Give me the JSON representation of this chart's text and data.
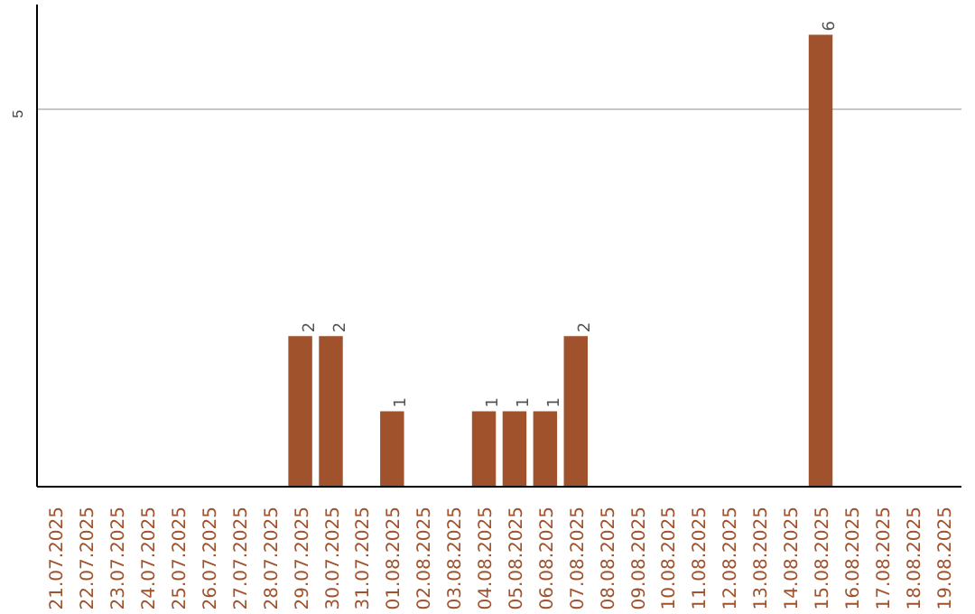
{
  "chart_data": {
    "type": "bar",
    "categories": [
      "21.07.2025",
      "22.07.2025",
      "23.07.2025",
      "24.07.2025",
      "25.07.2025",
      "26.07.2025",
      "27.07.2025",
      "28.07.2025",
      "29.07.2025",
      "30.07.2025",
      "31.07.2025",
      "01.08.2025",
      "02.08.2025",
      "03.08.2025",
      "04.08.2025",
      "05.08.2025",
      "06.08.2025",
      "07.08.2025",
      "08.08.2025",
      "09.08.2025",
      "10.08.2025",
      "11.08.2025",
      "12.08.2025",
      "13.08.2025",
      "14.08.2025",
      "15.08.2025",
      "16.08.2025",
      "17.08.2025",
      "18.08.2025",
      "19.08.2025"
    ],
    "values": [
      0,
      0,
      0,
      0,
      0,
      0,
      0,
      0,
      2,
      2,
      0,
      1,
      0,
      0,
      1,
      1,
      1,
      2,
      0,
      0,
      0,
      0,
      0,
      0,
      0,
      6,
      0,
      0,
      0,
      0
    ],
    "value_labels": [
      null,
      null,
      null,
      null,
      null,
      null,
      null,
      null,
      "2",
      "2",
      null,
      "1",
      null,
      null,
      "1",
      "1",
      "1",
      "2",
      null,
      null,
      null,
      null,
      null,
      null,
      null,
      "6",
      null,
      null,
      null,
      null
    ],
    "color": "#a0522d",
    "ylim": [
      0,
      6.4
    ],
    "yticks": [
      5
    ],
    "grid": "y"
  }
}
